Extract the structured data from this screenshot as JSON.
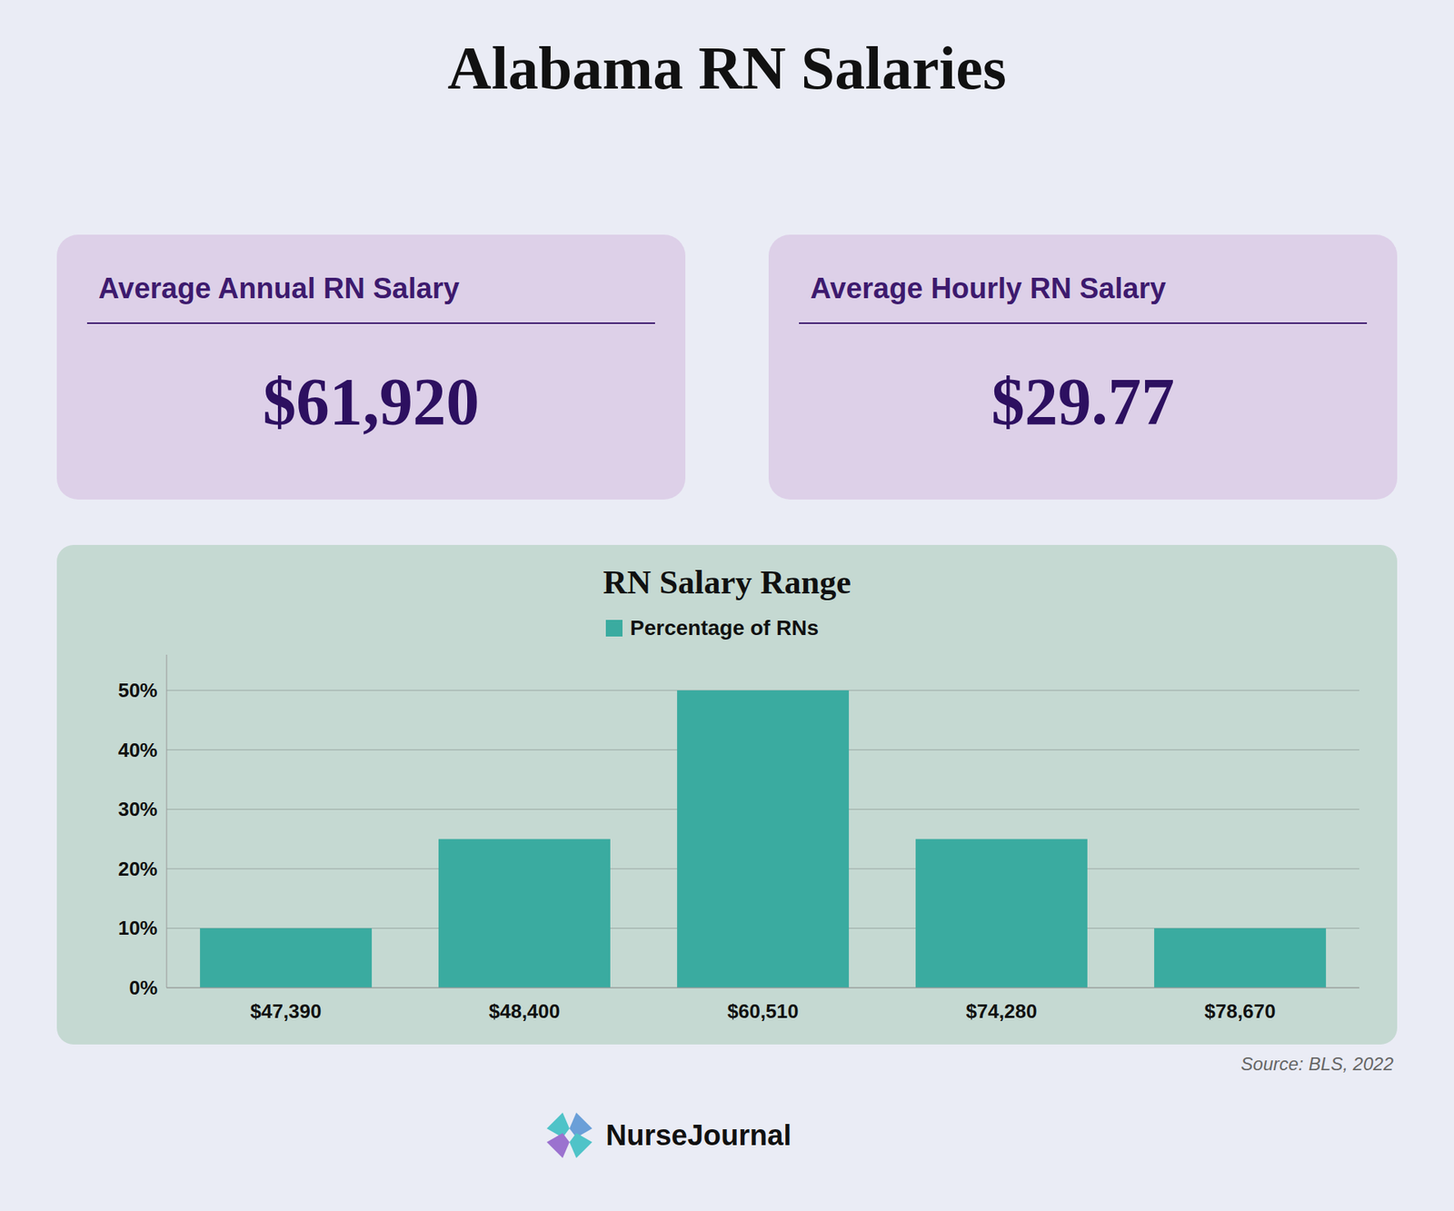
{
  "page_title": "Alabama RN Salaries",
  "cards": [
    {
      "label": "Average Annual RN Salary",
      "value": "$61,920"
    },
    {
      "label": "Average Hourly RN Salary",
      "value": "$29.77"
    }
  ],
  "source": "Source: BLS, 2022",
  "brand": "NurseJournal",
  "chart_data": {
    "type": "bar",
    "title": "RN Salary Range",
    "categories": [
      "$47,390",
      "$48,400",
      "$60,510",
      "$74,280",
      "$78,670"
    ],
    "series": [
      {
        "name": "Percentage of RNs",
        "color": "#3aaba0",
        "values": [
          10,
          25,
          50,
          25,
          10
        ]
      }
    ],
    "ylim": [
      0,
      56
    ],
    "yticks": [
      {
        "value": 0,
        "label": "0%"
      },
      {
        "value": 10,
        "label": "10%"
      },
      {
        "value": 20,
        "label": "20%"
      },
      {
        "value": 30,
        "label": "30%"
      },
      {
        "value": 40,
        "label": "40%"
      },
      {
        "value": 50,
        "label": "50%"
      }
    ],
    "grid": true,
    "legend": "top"
  }
}
